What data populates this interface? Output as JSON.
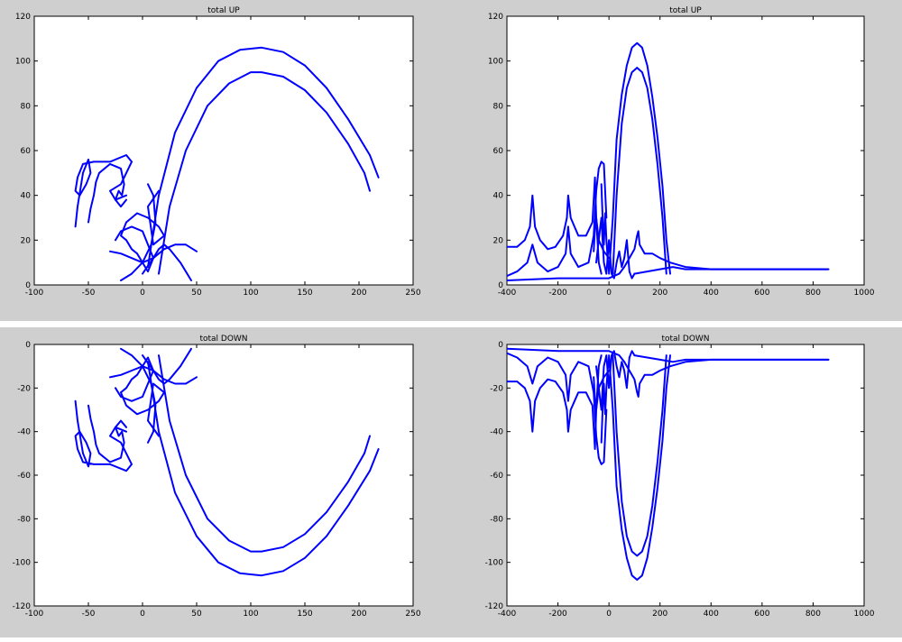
{
  "colors": {
    "background": "#cfcfcf",
    "axes": "#ffffff",
    "line": "#0000ff"
  },
  "chart_data": [
    {
      "type": "line",
      "title": "total UP",
      "xlim": [
        -100,
        250
      ],
      "ylim": [
        0,
        120
      ],
      "xticks": [
        -100,
        -50,
        0,
        50,
        100,
        150,
        200,
        250
      ],
      "yticks": [
        0,
        20,
        40,
        60,
        80,
        100,
        120
      ],
      "series": [
        {
          "x": [
            5,
            15,
            30,
            50,
            70,
            90,
            110,
            130,
            150,
            170,
            190,
            210,
            218
          ],
          "y": [
            8,
            40,
            68,
            88,
            100,
            105,
            106,
            104,
            98,
            88,
            74,
            58,
            48
          ]
        },
        {
          "x": [
            15,
            25,
            40,
            60,
            80,
            100,
            110,
            130,
            150,
            170,
            190,
            205,
            210
          ],
          "y": [
            5,
            35,
            60,
            80,
            90,
            95,
            95,
            93,
            87,
            77,
            63,
            50,
            42
          ]
        },
        {
          "x": [
            -62,
            -60,
            -55,
            -50,
            -48,
            -52,
            -58,
            -62,
            -60,
            -55,
            -45,
            -30,
            -15,
            -10,
            -20,
            -30,
            -25,
            -15
          ],
          "y": [
            26,
            35,
            50,
            56,
            50,
            45,
            40,
            42,
            48,
            54,
            55,
            55,
            58,
            55,
            45,
            42,
            38,
            40
          ]
        },
        {
          "x": [
            -50,
            -48,
            -45,
            -43,
            -40,
            -30,
            -20,
            -17,
            -19,
            -22,
            -25,
            -20,
            -15
          ],
          "y": [
            28,
            34,
            40,
            46,
            50,
            54,
            52,
            45,
            40,
            42,
            38,
            35,
            38
          ]
        },
        {
          "x": [
            -25,
            -20,
            -10,
            0,
            5,
            10,
            5,
            0,
            -5,
            -10,
            -15,
            -20,
            -15,
            -5,
            5,
            15,
            20,
            10,
            5,
            15
          ],
          "y": [
            20,
            24,
            26,
            24,
            18,
            12,
            6,
            10,
            14,
            16,
            20,
            22,
            28,
            32,
            30,
            26,
            22,
            18,
            35,
            42
          ]
        },
        {
          "x": [
            -30,
            -20,
            -10,
            0,
            10,
            20,
            30,
            40,
            50
          ],
          "y": [
            15,
            14,
            12,
            10,
            12,
            16,
            18,
            18,
            15
          ]
        },
        {
          "x": [
            0,
            10,
            15,
            20,
            25,
            35,
            45
          ],
          "y": [
            5,
            12,
            16,
            18,
            16,
            10,
            2
          ]
        },
        {
          "x": [
            -20,
            -10,
            0,
            8,
            12,
            10,
            5
          ],
          "y": [
            2,
            5,
            10,
            18,
            28,
            40,
            45
          ]
        }
      ]
    },
    {
      "type": "line",
      "title": "total UP",
      "xlim": [
        -400,
        1000
      ],
      "ylim": [
        0,
        120
      ],
      "xticks": [
        -400,
        -200,
        0,
        200,
        400,
        600,
        800,
        1000
      ],
      "yticks": [
        0,
        20,
        40,
        60,
        80,
        100,
        120
      ],
      "series": [
        {
          "x": [
            0,
            15,
            30,
            50,
            70,
            90,
            110,
            130,
            150,
            170,
            190,
            210,
            225,
            240
          ],
          "y": [
            5,
            30,
            65,
            85,
            98,
            106,
            108,
            106,
            98,
            84,
            66,
            44,
            20,
            5
          ]
        },
        {
          "x": [
            15,
            30,
            50,
            70,
            90,
            110,
            130,
            150,
            170,
            190,
            210,
            225
          ],
          "y": [
            5,
            40,
            72,
            88,
            95,
            97,
            95,
            88,
            74,
            54,
            30,
            5
          ]
        },
        {
          "x": [
            -400,
            -360,
            -330,
            -310,
            -300,
            -290,
            -270,
            -240,
            -210,
            -180,
            -165,
            -160,
            -150,
            -120,
            -90,
            -65,
            -55,
            -50,
            -40,
            -20,
            0
          ],
          "y": [
            17,
            17,
            20,
            26,
            40,
            26,
            20,
            16,
            17,
            22,
            30,
            40,
            30,
            22,
            22,
            28,
            48,
            30,
            20,
            15,
            12
          ]
        },
        {
          "x": [
            -400,
            -360,
            -320,
            -300,
            -280,
            -240,
            -200,
            -170,
            -160,
            -150,
            -120,
            -80,
            -60,
            -50,
            -40,
            -30,
            -20,
            -10
          ],
          "y": [
            4,
            6,
            10,
            18,
            10,
            6,
            8,
            14,
            26,
            14,
            8,
            10,
            22,
            42,
            52,
            55,
            54,
            30
          ]
        },
        {
          "x": [
            -400,
            -200,
            0,
            20,
            40,
            60,
            80,
            100,
            110,
            115,
            120,
            140,
            170,
            200,
            240,
            300,
            400,
            600,
            860
          ],
          "y": [
            2,
            3,
            3,
            4,
            5,
            8,
            12,
            16,
            22,
            24,
            18,
            14,
            14,
            12,
            10,
            8,
            7,
            7,
            7
          ]
        },
        {
          "x": [
            -50,
            -40,
            -30,
            -20,
            -10,
            0,
            10,
            20,
            30,
            40,
            50,
            60,
            70,
            80,
            90,
            100
          ],
          "y": [
            10,
            20,
            30,
            10,
            5,
            20,
            5,
            3,
            10,
            15,
            8,
            12,
            20,
            6,
            3,
            5
          ]
        },
        {
          "x": [
            -30,
            -25,
            -20,
            -15,
            -10,
            -5,
            0
          ],
          "y": [
            45,
            30,
            18,
            32,
            20,
            12,
            6
          ]
        },
        {
          "x": [
            100,
            200,
            250,
            300,
            400,
            500,
            600,
            700,
            860
          ],
          "y": [
            5,
            7,
            8,
            7,
            7,
            7,
            7,
            7,
            7
          ]
        },
        {
          "x": [
            -60,
            -55,
            -50,
            -45,
            -40,
            -30
          ],
          "y": [
            15,
            25,
            30,
            20,
            10,
            5
          ]
        }
      ]
    },
    {
      "type": "line",
      "title": "total DOWN",
      "xlim": [
        -100,
        250
      ],
      "ylim": [
        -120,
        0
      ],
      "xticks": [
        -100,
        -50,
        0,
        50,
        100,
        150,
        200,
        250
      ],
      "yticks": [
        -120,
        -100,
        -80,
        -60,
        -40,
        -20,
        0
      ],
      "series": [
        {
          "x": [
            5,
            15,
            30,
            50,
            70,
            90,
            110,
            130,
            150,
            170,
            190,
            210,
            218
          ],
          "y": [
            -8,
            -40,
            -68,
            -88,
            -100,
            -105,
            -106,
            -104,
            -98,
            -88,
            -74,
            -58,
            -48
          ]
        },
        {
          "x": [
            15,
            25,
            40,
            60,
            80,
            100,
            110,
            130,
            150,
            170,
            190,
            205,
            210
          ],
          "y": [
            -5,
            -35,
            -60,
            -80,
            -90,
            -95,
            -95,
            -93,
            -87,
            -77,
            -63,
            -50,
            -42
          ]
        },
        {
          "x": [
            -62,
            -60,
            -55,
            -50,
            -48,
            -52,
            -58,
            -62,
            -60,
            -55,
            -45,
            -30,
            -15,
            -10,
            -20,
            -30,
            -25,
            -15
          ],
          "y": [
            -26,
            -35,
            -50,
            -56,
            -50,
            -45,
            -40,
            -42,
            -48,
            -54,
            -55,
            -55,
            -58,
            -55,
            -45,
            -42,
            -38,
            -40
          ]
        },
        {
          "x": [
            -50,
            -48,
            -45,
            -43,
            -40,
            -30,
            -20,
            -17,
            -19,
            -22,
            -25,
            -20,
            -15
          ],
          "y": [
            -28,
            -34,
            -40,
            -46,
            -50,
            -54,
            -52,
            -45,
            -40,
            -42,
            -38,
            -35,
            -38
          ]
        },
        {
          "x": [
            -25,
            -20,
            -10,
            0,
            5,
            10,
            5,
            0,
            -5,
            -10,
            -15,
            -20,
            -15,
            -5,
            5,
            15,
            20,
            10,
            5,
            15
          ],
          "y": [
            -20,
            -24,
            -26,
            -24,
            -18,
            -12,
            -6,
            -10,
            -14,
            -16,
            -20,
            -22,
            -28,
            -32,
            -30,
            -26,
            -22,
            -18,
            -35,
            -42
          ]
        },
        {
          "x": [
            -30,
            -20,
            -10,
            0,
            10,
            20,
            30,
            40,
            50
          ],
          "y": [
            -15,
            -14,
            -12,
            -10,
            -12,
            -16,
            -18,
            -18,
            -15
          ]
        },
        {
          "x": [
            0,
            10,
            15,
            20,
            25,
            35,
            45
          ],
          "y": [
            -5,
            -12,
            -16,
            -18,
            -16,
            -10,
            -2
          ]
        },
        {
          "x": [
            -20,
            -10,
            0,
            8,
            12,
            10,
            5
          ],
          "y": [
            -2,
            -5,
            -10,
            -18,
            -28,
            -40,
            -45
          ]
        }
      ]
    },
    {
      "type": "line",
      "title": "total DOWN",
      "xlim": [
        -400,
        1000
      ],
      "ylim": [
        -120,
        0
      ],
      "xticks": [
        -400,
        -200,
        0,
        200,
        400,
        600,
        800,
        1000
      ],
      "yticks": [
        -120,
        -100,
        -80,
        -60,
        -40,
        -20,
        0
      ],
      "series": [
        {
          "x": [
            0,
            15,
            30,
            50,
            70,
            90,
            110,
            130,
            150,
            170,
            190,
            210,
            225,
            240
          ],
          "y": [
            -5,
            -30,
            -65,
            -85,
            -98,
            -106,
            -108,
            -106,
            -98,
            -84,
            -66,
            -44,
            -20,
            -5
          ]
        },
        {
          "x": [
            15,
            30,
            50,
            70,
            90,
            110,
            130,
            150,
            170,
            190,
            210,
            225
          ],
          "y": [
            -5,
            -40,
            -72,
            -88,
            -95,
            -97,
            -95,
            -88,
            -74,
            -54,
            -30,
            -5
          ]
        },
        {
          "x": [
            -400,
            -360,
            -330,
            -310,
            -300,
            -290,
            -270,
            -240,
            -210,
            -180,
            -165,
            -160,
            -150,
            -120,
            -90,
            -65,
            -55,
            -50,
            -40,
            -20,
            0
          ],
          "y": [
            -17,
            -17,
            -20,
            -26,
            -40,
            -26,
            -20,
            -16,
            -17,
            -22,
            -30,
            -40,
            -30,
            -22,
            -22,
            -28,
            -48,
            -30,
            -20,
            -15,
            -12
          ]
        },
        {
          "x": [
            -400,
            -360,
            -320,
            -300,
            -280,
            -240,
            -200,
            -170,
            -160,
            -150,
            -120,
            -80,
            -60,
            -50,
            -40,
            -30,
            -20,
            -10
          ],
          "y": [
            -4,
            -6,
            -10,
            -18,
            -10,
            -6,
            -8,
            -14,
            -26,
            -14,
            -8,
            -10,
            -22,
            -42,
            -52,
            -55,
            -54,
            -30
          ]
        },
        {
          "x": [
            -400,
            -200,
            0,
            20,
            40,
            60,
            80,
            100,
            110,
            115,
            120,
            140,
            170,
            200,
            240,
            300,
            400,
            600,
            860
          ],
          "y": [
            -2,
            -3,
            -3,
            -4,
            -5,
            -8,
            -12,
            -16,
            -22,
            -24,
            -18,
            -14,
            -14,
            -12,
            -10,
            -8,
            -7,
            -7,
            -7
          ]
        },
        {
          "x": [
            -50,
            -40,
            -30,
            -20,
            -10,
            0,
            10,
            20,
            30,
            40,
            50,
            60,
            70,
            80,
            90,
            100
          ],
          "y": [
            -10,
            -20,
            -30,
            -10,
            -5,
            -20,
            -5,
            -3,
            -10,
            -15,
            -8,
            -12,
            -20,
            -6,
            -3,
            -5
          ]
        },
        {
          "x": [
            -30,
            -25,
            -20,
            -15,
            -10,
            -5,
            0
          ],
          "y": [
            -45,
            -30,
            -18,
            -32,
            -20,
            -12,
            -6
          ]
        },
        {
          "x": [
            100,
            200,
            250,
            300,
            400,
            500,
            600,
            700,
            860
          ],
          "y": [
            -5,
            -7,
            -8,
            -7,
            -7,
            -7,
            -7,
            -7,
            -7
          ]
        },
        {
          "x": [
            -60,
            -55,
            -50,
            -45,
            -40,
            -30
          ],
          "y": [
            -15,
            -25,
            -30,
            -20,
            -10,
            -5
          ]
        }
      ]
    }
  ]
}
